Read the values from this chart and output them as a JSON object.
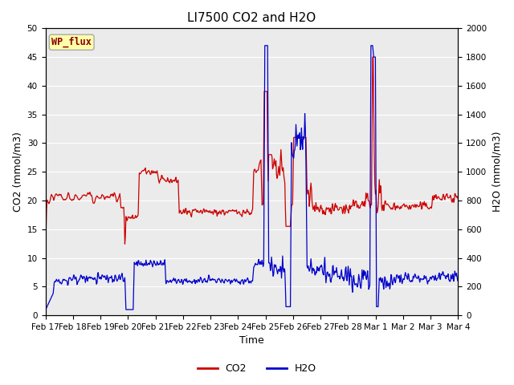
{
  "title": "LI7500 CO2 and H2O",
  "xlabel": "Time",
  "ylabel_left": "CO2 (mmol/m3)",
  "ylabel_right": "H2O (mmol/m3)",
  "xlim_days": [
    0,
    15.5
  ],
  "ylim_left": [
    0,
    50
  ],
  "ylim_right": [
    0,
    2000
  ],
  "yticks_left": [
    0,
    5,
    10,
    15,
    20,
    25,
    30,
    35,
    40,
    45,
    50
  ],
  "yticks_right": [
    0,
    200,
    400,
    600,
    800,
    1000,
    1200,
    1400,
    1600,
    1800,
    2000
  ],
  "xtick_labels": [
    "Feb 17",
    "Feb 18",
    "Feb 19",
    "Feb 20",
    "Feb 21",
    "Feb 22",
    "Feb 23",
    "Feb 24",
    "Feb 25",
    "Feb 26",
    "Feb 27",
    "Feb 28",
    "Mar 1",
    "Mar 2",
    "Mar 3",
    "Mar 4"
  ],
  "co2_color": "#CC0000",
  "h2o_color": "#0000CC",
  "plot_bg_color": "#EBEBEB",
  "fig_bg_color": "#FFFFFF",
  "grid_color": "#FFFFFF",
  "wp_flux_label": "WP_flux",
  "wp_flux_bg": "#FFFFAA",
  "wp_flux_border": "#AAAAAA",
  "wp_flux_text_color": "#880000",
  "legend_co2": "CO2",
  "legend_h2o": "H2O",
  "title_fontsize": 11,
  "axis_fontsize": 9,
  "tick_fontsize": 7.5,
  "legend_fontsize": 9
}
